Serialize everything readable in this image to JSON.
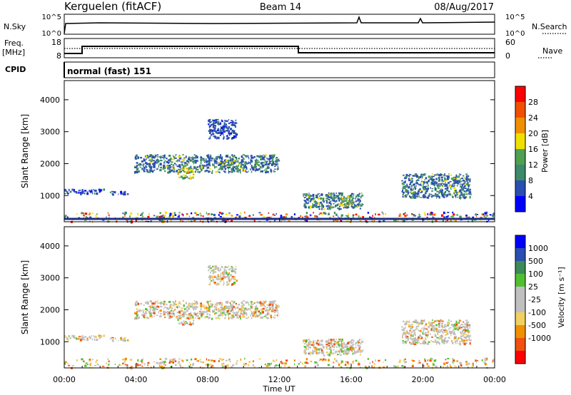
{
  "header": {
    "station": "Kerguelen (fitACF)",
    "beam": "Beam 14",
    "date": "08/Aug/2017"
  },
  "top_panels": {
    "nsky_label": "N.Sky",
    "nsky_ticks": [
      "10^5",
      "10^0"
    ],
    "nsearch_label": "N.Search",
    "nsearch_ticks": [
      "10^5",
      "10^0"
    ],
    "freq_label": "Freq.",
    "freq_unit": "[MHz]",
    "freq_ticks": [
      "18",
      "8"
    ],
    "nave_label": "Nave",
    "nave_ticks": [
      "60",
      "0"
    ],
    "cpid_label": "CPID",
    "cpid_text": "normal (fast) 151"
  },
  "colors": {
    "power_scale": [
      "#0000ff",
      "#2b4fb0",
      "#3c8a6a",
      "#4fa050",
      "#f0e000",
      "#f09000",
      "#f05000",
      "#ff0000"
    ],
    "velocity_scale": [
      "#ff0000",
      "#f05010",
      "#f09000",
      "#f0d060",
      "#c0c0c0",
      "#c0c0c0",
      "#50c030",
      "#3c8a5a",
      "#2b4fb0",
      "#0000ff"
    ],
    "ground_line": "#203080"
  },
  "chart_data": [
    {
      "type": "heatmap",
      "name": "power",
      "xlabel": "",
      "ylabel": "Slant Range [km]",
      "xlim_hours": [
        0,
        24
      ],
      "ylim_km": [
        180,
        4600
      ],
      "yticks": [
        "1000",
        "2000",
        "3000",
        "4000"
      ],
      "colorbar_label": "Power [dB]",
      "colorbar_ticks": [
        "4",
        "8",
        "12",
        "16",
        "20",
        "24",
        "28"
      ],
      "regions": [
        {
          "t": [
            0.0,
            2.2
          ],
          "r": [
            1080,
            1220
          ],
          "level": "weak"
        },
        {
          "t": [
            2.5,
            3.5
          ],
          "r": [
            1050,
            1150
          ],
          "level": "weak"
        },
        {
          "t": [
            3.9,
            11.9
          ],
          "r": [
            1750,
            2300
          ],
          "level": "medium"
        },
        {
          "t": [
            6.3,
            7.2
          ],
          "r": [
            1550,
            1900
          ],
          "level": "strong"
        },
        {
          "t": [
            8.0,
            9.6
          ],
          "r": [
            2800,
            3400
          ],
          "level": "weak"
        },
        {
          "t": [
            13.3,
            16.6
          ],
          "r": [
            600,
            1100
          ],
          "level": "medium"
        },
        {
          "t": [
            15.3,
            16.1
          ],
          "r": [
            700,
            1000
          ],
          "level": "strong"
        },
        {
          "t": [
            18.8,
            22.6
          ],
          "r": [
            950,
            1700
          ],
          "level": "medium"
        },
        {
          "t": [
            0.0,
            24.0
          ],
          "r": [
            200,
            500
          ],
          "level": "mixed"
        }
      ]
    },
    {
      "type": "heatmap",
      "name": "velocity",
      "xlabel": "Time UT",
      "ylabel": "Slant Range [km]",
      "xlim_hours": [
        0,
        24
      ],
      "xticks": [
        "00:00",
        "04:00",
        "08:00",
        "12:00",
        "16:00",
        "20:00",
        "00:00"
      ],
      "ylim_km": [
        180,
        4600
      ],
      "yticks": [
        "1000",
        "2000",
        "3000",
        "4000"
      ],
      "colorbar_label": "Velocity [m s⁻¹]",
      "colorbar_ticks": [
        "1000",
        "500",
        "100",
        "25",
        "-25",
        "-100",
        "-500",
        "-1000"
      ]
    }
  ]
}
